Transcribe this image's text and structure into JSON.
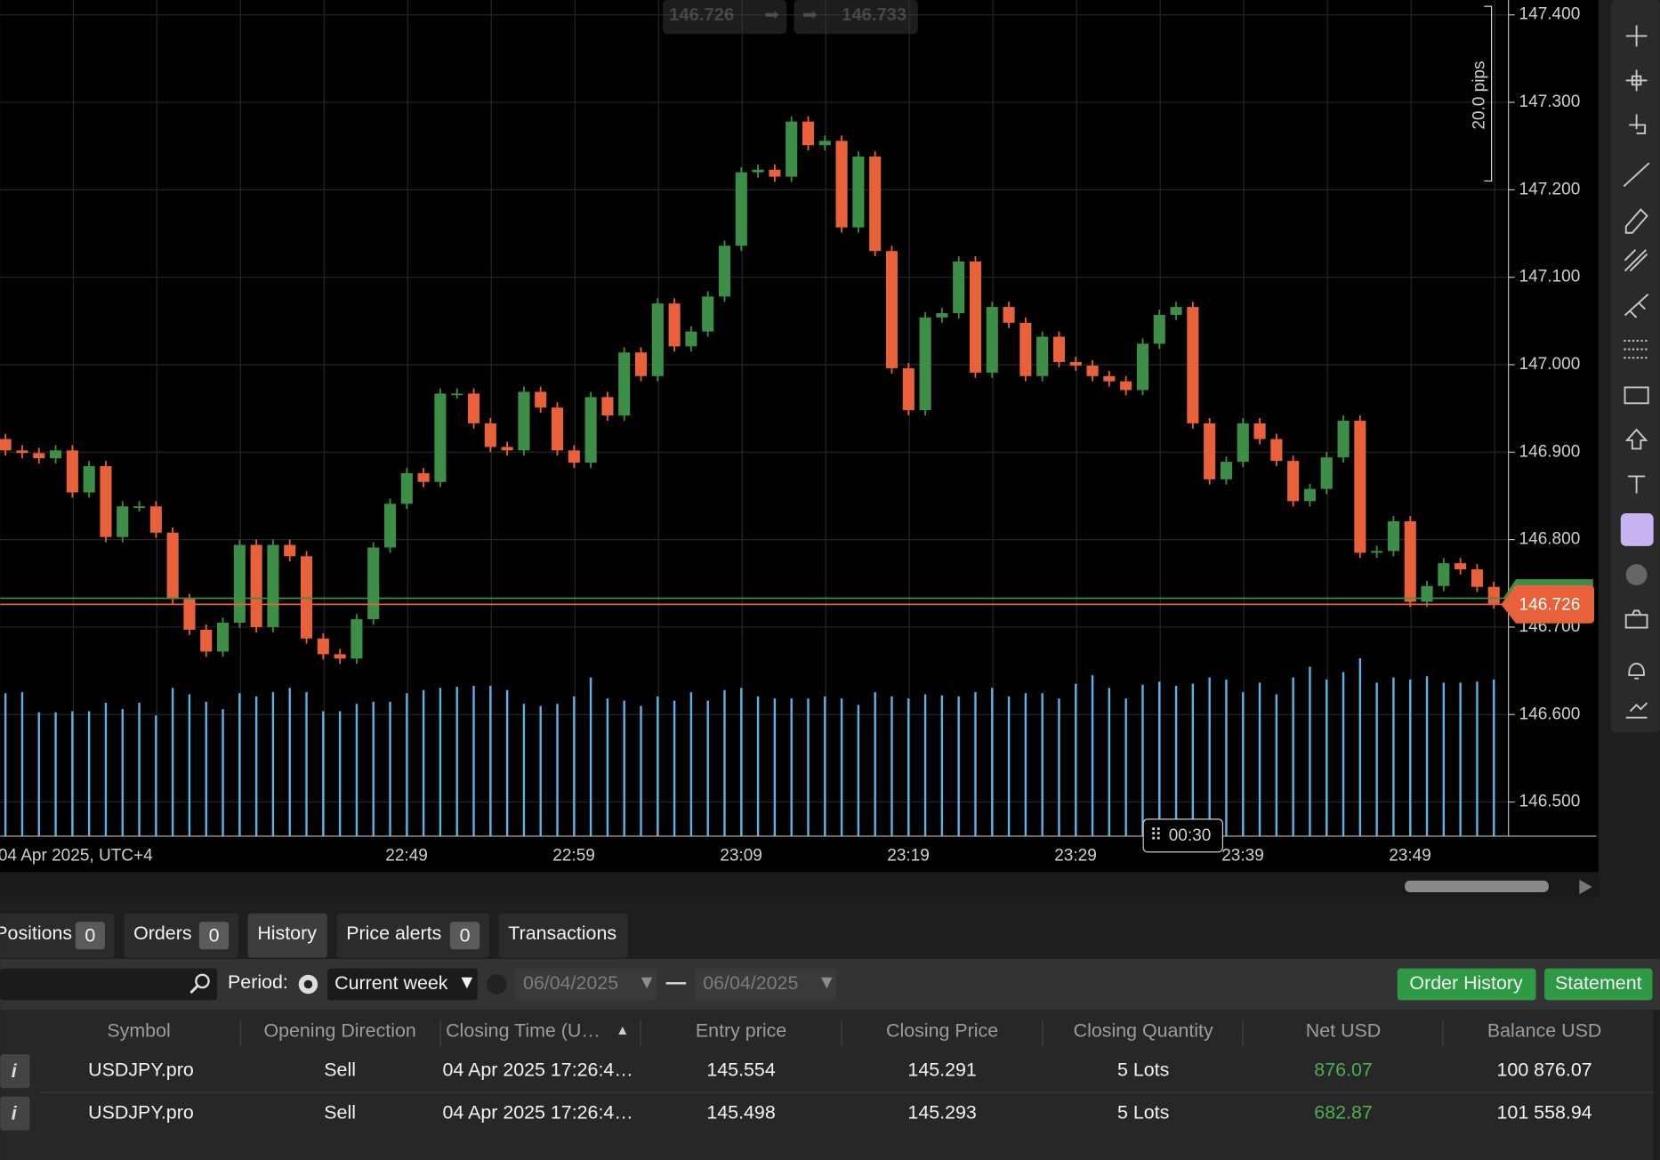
{
  "chart_data": {
    "type": "candlestick",
    "open": [
      146.915,
      146.902,
      146.899,
      146.893,
      146.902,
      146.854,
      146.884,
      146.803,
      146.838,
      146.838,
      146.808,
      146.732,
      146.697,
      146.672,
      146.705,
      146.794,
      146.7,
      146.794,
      146.781,
      146.687,
      146.669,
      146.664,
      146.709,
      146.791,
      146.841,
      146.876,
      146.866,
      146.967,
      146.967,
      146.933,
      146.906,
      146.902,
      146.969,
      146.951,
      146.902,
      146.888,
      146.963,
      146.942,
      147.014,
      146.987,
      147.07,
      147.021,
      147.038,
      147.078,
      147.136,
      147.22,
      147.223,
      147.215,
      147.278,
      147.251,
      147.256,
      147.157,
      147.238,
      147.13,
      146.996,
      146.948,
      147.054,
      147.059,
      147.118,
      146.991,
      147.066,
      147.048,
      146.987,
      147.032,
      147.003,
      146.999,
      146.987,
      146.981,
      146.971,
      147.024,
      147.057,
      147.066,
      146.933,
      146.869,
      146.889,
      146.933,
      146.915,
      146.89,
      146.844,
      146.858,
      146.894,
      146.936,
      146.785,
      146.787,
      146.821,
      146.729,
      146.747,
      146.773,
      146.766,
      146.746
    ],
    "high": [
      146.921,
      146.908,
      146.905,
      146.908,
      146.908,
      146.89,
      146.89,
      146.844,
      146.844,
      146.844,
      146.814,
      146.738,
      146.703,
      146.711,
      146.8,
      146.8,
      146.8,
      146.8,
      146.787,
      146.693,
      146.675,
      146.715,
      146.797,
      146.847,
      146.882,
      146.882,
      146.973,
      146.973,
      146.973,
      146.939,
      146.912,
      146.975,
      146.975,
      146.957,
      146.908,
      146.969,
      146.969,
      147.02,
      147.02,
      147.076,
      147.076,
      147.044,
      147.084,
      147.142,
      147.226,
      147.229,
      147.229,
      147.284,
      147.284,
      147.262,
      147.262,
      147.244,
      147.244,
      147.136,
      147.002,
      147.06,
      147.065,
      147.124,
      147.124,
      147.072,
      147.072,
      147.054,
      147.038,
      147.038,
      147.009,
      147.005,
      146.993,
      146.987,
      147.03,
      147.063,
      147.072,
      147.072,
      146.939,
      146.895,
      146.939,
      146.939,
      146.921,
      146.896,
      146.864,
      146.9,
      146.942,
      146.942,
      146.793,
      146.827,
      146.827,
      146.753,
      146.779,
      146.779,
      146.772,
      146.752
    ],
    "low": [
      146.896,
      146.893,
      146.887,
      146.887,
      146.848,
      146.848,
      146.797,
      146.797,
      146.832,
      146.802,
      146.726,
      146.691,
      146.666,
      146.666,
      146.699,
      146.694,
      146.694,
      146.775,
      146.681,
      146.663,
      146.658,
      146.658,
      146.703,
      146.785,
      146.835,
      146.86,
      146.86,
      146.961,
      146.927,
      146.9,
      146.896,
      146.896,
      146.945,
      146.896,
      146.882,
      146.882,
      146.936,
      146.936,
      146.981,
      146.981,
      147.015,
      147.015,
      147.032,
      147.072,
      147.13,
      147.214,
      147.209,
      147.209,
      147.245,
      147.245,
      147.151,
      147.151,
      147.124,
      146.99,
      146.942,
      146.942,
      147.048,
      147.053,
      146.985,
      146.985,
      147.042,
      146.981,
      146.981,
      146.997,
      146.993,
      146.981,
      146.975,
      146.965,
      146.965,
      147.018,
      147.051,
      146.927,
      146.863,
      146.863,
      146.883,
      146.909,
      146.884,
      146.838,
      146.838,
      146.852,
      146.888,
      146.779,
      146.779,
      146.781,
      146.723,
      146.723,
      146.741,
      146.76,
      146.74,
      146.721
    ],
    "close": [
      146.902,
      146.899,
      146.893,
      146.902,
      146.854,
      146.884,
      146.803,
      146.838,
      146.838,
      146.808,
      146.732,
      146.697,
      146.672,
      146.705,
      146.794,
      146.7,
      146.794,
      146.781,
      146.687,
      146.669,
      146.664,
      146.709,
      146.791,
      146.841,
      146.876,
      146.866,
      146.967,
      146.967,
      146.933,
      146.906,
      146.902,
      146.969,
      146.951,
      146.902,
      146.888,
      146.963,
      146.942,
      147.014,
      146.987,
      147.07,
      147.021,
      147.038,
      147.078,
      147.136,
      147.22,
      147.223,
      147.215,
      147.278,
      147.251,
      147.256,
      147.157,
      147.238,
      147.13,
      146.996,
      146.948,
      147.054,
      147.059,
      147.118,
      146.991,
      147.066,
      147.048,
      146.987,
      147.032,
      147.003,
      146.999,
      146.987,
      146.981,
      146.971,
      147.024,
      147.057,
      147.066,
      146.933,
      146.869,
      146.889,
      146.933,
      146.915,
      146.89,
      146.844,
      146.858,
      146.894,
      146.936,
      146.785,
      146.787,
      146.821,
      146.729,
      146.747,
      146.773,
      146.766,
      146.746,
      146.727
    ],
    "volume": [
      135,
      136,
      117,
      117,
      118,
      118,
      126,
      120,
      126,
      114,
      140,
      134,
      127,
      120,
      135,
      132,
      136,
      140,
      136,
      118,
      118,
      125,
      127,
      127,
      135,
      138,
      140,
      141,
      142,
      142,
      138,
      125,
      123,
      125,
      132,
      150,
      130,
      128,
      123,
      132,
      128,
      136,
      128,
      138,
      140,
      132,
      130,
      130,
      130,
      132,
      130,
      124,
      136,
      132,
      130,
      134,
      133,
      132,
      136,
      140,
      132,
      135,
      135,
      130,
      144,
      152,
      140,
      130,
      143,
      146,
      142,
      144,
      150,
      148,
      136,
      145,
      134,
      150,
      160,
      148,
      155,
      168,
      145,
      150,
      148,
      151,
      145,
      145,
      146,
      148
    ],
    "up_color": "#3d8f47",
    "down_color": "#e8613a",
    "volume_color": "#5ab4ec",
    "ylim": [
      146.461,
      147.417
    ],
    "yticks": [
      {
        "value": 147.4,
        "label": "147.400"
      },
      {
        "value": 147.3,
        "label": "147.300"
      },
      {
        "value": 147.2,
        "label": "147.200"
      },
      {
        "value": 147.1,
        "label": "147.100"
      },
      {
        "value": 147.0,
        "label": "147.000"
      },
      {
        "value": 146.9,
        "label": "146.900"
      },
      {
        "value": 146.8,
        "label": "146.800"
      },
      {
        "value": 146.7,
        "label": "146.700"
      },
      {
        "value": 146.6,
        "label": "146.600"
      },
      {
        "value": 146.5,
        "label": "146.500"
      }
    ],
    "grid": true,
    "time_labels": [
      "04 Apr 2025, UTC+4",
      "22:49",
      "22:59",
      "23:09",
      "23:19",
      "23:29",
      "23:39",
      "23:49"
    ],
    "bid": {
      "value": 146.726,
      "label": "146.726"
    },
    "ask": {
      "value": 146.733,
      "label": "146.733"
    },
    "range_label": "20.0 pips",
    "timer": "00:30"
  },
  "tabs": [
    {
      "label": "Positions",
      "count": 0
    },
    {
      "label": "Orders",
      "count": 0
    },
    {
      "label": "History"
    },
    {
      "label": "Price alerts",
      "count": 0
    },
    {
      "label": "Transactions"
    }
  ],
  "filter": {
    "period_label": "Period:",
    "period": "Current week",
    "date_from": "06/04/2025",
    "date_to": "06/04/2025",
    "buttons": [
      "Order History",
      "Statement"
    ]
  },
  "table": {
    "columns": [
      "Symbol",
      "Opening Direction",
      "Closing Time (U…",
      "Entry price",
      "Closing Price",
      "Closing Quantity",
      "Net USD",
      "Balance USD"
    ],
    "rows": [
      [
        "USDJPY.pro",
        "Sell",
        "04 Apr 2025 17:26:4…",
        145.554,
        145.291,
        "5 Lots",
        876.07,
        "100 876.07"
      ],
      [
        "USDJPY.pro",
        "Sell",
        "04 Apr 2025 17:26:4…",
        145.498,
        145.293,
        "5 Lots",
        682.87,
        "101 558.94"
      ]
    ]
  }
}
